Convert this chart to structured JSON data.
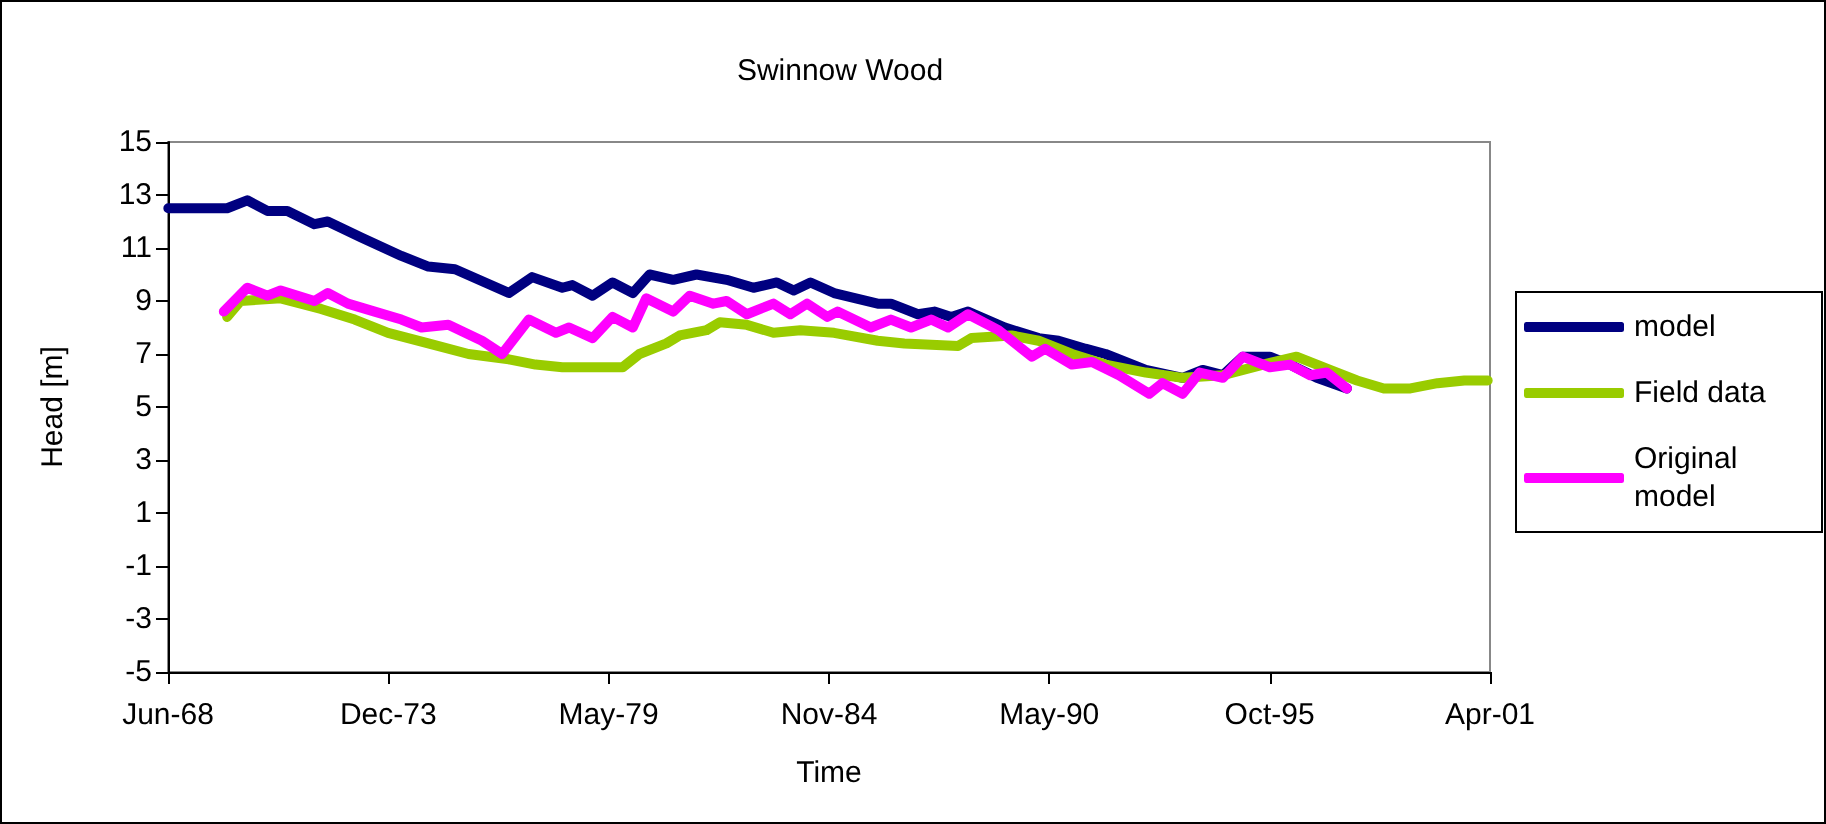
{
  "chart_data": {
    "type": "line",
    "title": "Swinnow Wood",
    "xlabel": "Time",
    "ylabel": "Head [m]",
    "xlim": [
      "1968-06-12",
      "2001-04-22"
    ],
    "xticks": [
      {
        "value": "1968-06-12",
        "label": "Jun-68"
      },
      {
        "value": "1973-12-03",
        "label": "Dec-73"
      },
      {
        "value": "1979-05-26",
        "label": "May-79"
      },
      {
        "value": "1984-11-16",
        "label": "Nov-84"
      },
      {
        "value": "1990-05-09",
        "label": "May-90"
      },
      {
        "value": "1995-10-30",
        "label": "Oct-95"
      },
      {
        "value": "2001-04-22",
        "label": "Apr-01"
      }
    ],
    "ylim": [
      -5,
      15
    ],
    "yticks": [
      -5,
      -3,
      -1,
      1,
      3,
      5,
      7,
      9,
      11,
      13,
      15
    ],
    "grid": false,
    "legend": "right",
    "line_style": "solid",
    "marker": "none",
    "series": [
      {
        "name": "model",
        "color": "#000080",
        "x": [
          "1968-06-15",
          "1969-12",
          "1970-06",
          "1970-12",
          "1971-06",
          "1972-02",
          "1972-06",
          "1973-04",
          "1974-04",
          "1974-12",
          "1975-08",
          "1976-12",
          "1977-07",
          "1978-04",
          "1978-07",
          "1979-01",
          "1979-07",
          "1980-01",
          "1980-06",
          "1981-01",
          "1981-08",
          "1982-05",
          "1983-01",
          "1983-08",
          "1984-01",
          "1984-06",
          "1985-01",
          "1986-02",
          "1986-06",
          "1987-02",
          "1987-07",
          "1987-12",
          "1988-05",
          "1989-04",
          "1990-02",
          "1990-08",
          "1991-04",
          "1991-10",
          "1992-10",
          "1993-09",
          "1994-03",
          "1994-09",
          "1995-03",
          "1995-11",
          "1996-05",
          "1997-01",
          "1997-10"
        ],
        "values": [
          12.5,
          12.5,
          12.8,
          12.4,
          12.4,
          11.9,
          12.0,
          11.4,
          10.7,
          10.3,
          10.2,
          9.3,
          9.9,
          9.5,
          9.6,
          9.2,
          9.7,
          9.3,
          10.0,
          9.8,
          10.0,
          9.8,
          9.5,
          9.7,
          9.4,
          9.7,
          9.3,
          8.9,
          8.9,
          8.5,
          8.6,
          8.4,
          8.6,
          8.0,
          7.6,
          7.5,
          7.2,
          7.0,
          6.4,
          6.1,
          6.4,
          6.2,
          6.9,
          6.9,
          6.6,
          6.1,
          5.7
        ]
      },
      {
        "name": "Field data",
        "color": "#99cc00",
        "x": [
          "1969-12",
          "1970-04",
          "1971-04",
          "1972-04",
          "1973-02",
          "1973-12",
          "1974-12",
          "1975-12",
          "1976-12",
          "1977-08",
          "1978-04",
          "1979-01",
          "1979-10",
          "1980-03",
          "1980-11",
          "1981-03",
          "1981-11",
          "1982-03",
          "1982-11",
          "1983-07",
          "1984-03",
          "1985-01",
          "1986-02",
          "1986-10",
          "1988-02",
          "1988-06",
          "1989-06",
          "1990-02",
          "1990-12",
          "1991-10",
          "1992-10",
          "1993-09",
          "1994-09",
          "1995-09",
          "1996-07",
          "1997-05",
          "1998-01",
          "1998-09",
          "1999-05",
          "2000-01",
          "2000-09",
          "2001-04"
        ],
        "values": [
          8.4,
          9.0,
          9.1,
          8.7,
          8.3,
          7.8,
          7.4,
          7.0,
          6.8,
          6.6,
          6.5,
          6.5,
          6.5,
          7.0,
          7.4,
          7.7,
          7.9,
          8.2,
          8.1,
          7.8,
          7.9,
          7.8,
          7.5,
          7.4,
          7.3,
          7.6,
          7.7,
          7.5,
          7.0,
          6.6,
          6.3,
          6.1,
          6.2,
          6.6,
          6.9,
          6.4,
          6.0,
          5.7,
          5.7,
          5.9,
          6.0,
          6.0
        ]
      },
      {
        "name": "Original model",
        "color": "#ff00ff",
        "x": [
          "1969-11",
          "1970-06",
          "1970-12",
          "1971-04",
          "1972-02",
          "1972-06",
          "1972-12",
          "1973-08",
          "1974-04",
          "1974-10",
          "1975-06",
          "1976-04",
          "1976-10",
          "1977-06",
          "1978-02",
          "1978-06",
          "1979-01",
          "1979-07",
          "1980-01",
          "1980-05",
          "1981-01",
          "1981-06",
          "1982-01",
          "1982-05",
          "1982-11",
          "1983-07",
          "1983-12",
          "1984-05",
          "1984-11",
          "1985-02",
          "1985-12",
          "1986-06",
          "1986-12",
          "1987-06",
          "1987-11",
          "1988-05",
          "1989-02",
          "1989-12",
          "1990-04",
          "1990-12",
          "1991-06",
          "1992-02",
          "1992-11",
          "1993-03",
          "1993-09",
          "1994-02",
          "1994-09",
          "1995-03",
          "1995-11",
          "1996-05",
          "1996-11",
          "1997-04",
          "1997-10"
        ],
        "values": [
          8.6,
          9.5,
          9.2,
          9.4,
          9.0,
          9.3,
          8.9,
          8.6,
          8.3,
          8.0,
          8.1,
          7.5,
          7.0,
          8.3,
          7.8,
          8.0,
          7.6,
          8.4,
          8.0,
          9.1,
          8.6,
          9.2,
          8.9,
          9.0,
          8.5,
          8.9,
          8.5,
          8.9,
          8.4,
          8.6,
          8.0,
          8.3,
          8.0,
          8.3,
          8.0,
          8.5,
          7.9,
          6.9,
          7.2,
          6.6,
          6.7,
          6.2,
          5.5,
          5.9,
          5.5,
          6.3,
          6.1,
          6.9,
          6.5,
          6.6,
          6.2,
          6.3,
          5.7
        ]
      }
    ]
  }
}
